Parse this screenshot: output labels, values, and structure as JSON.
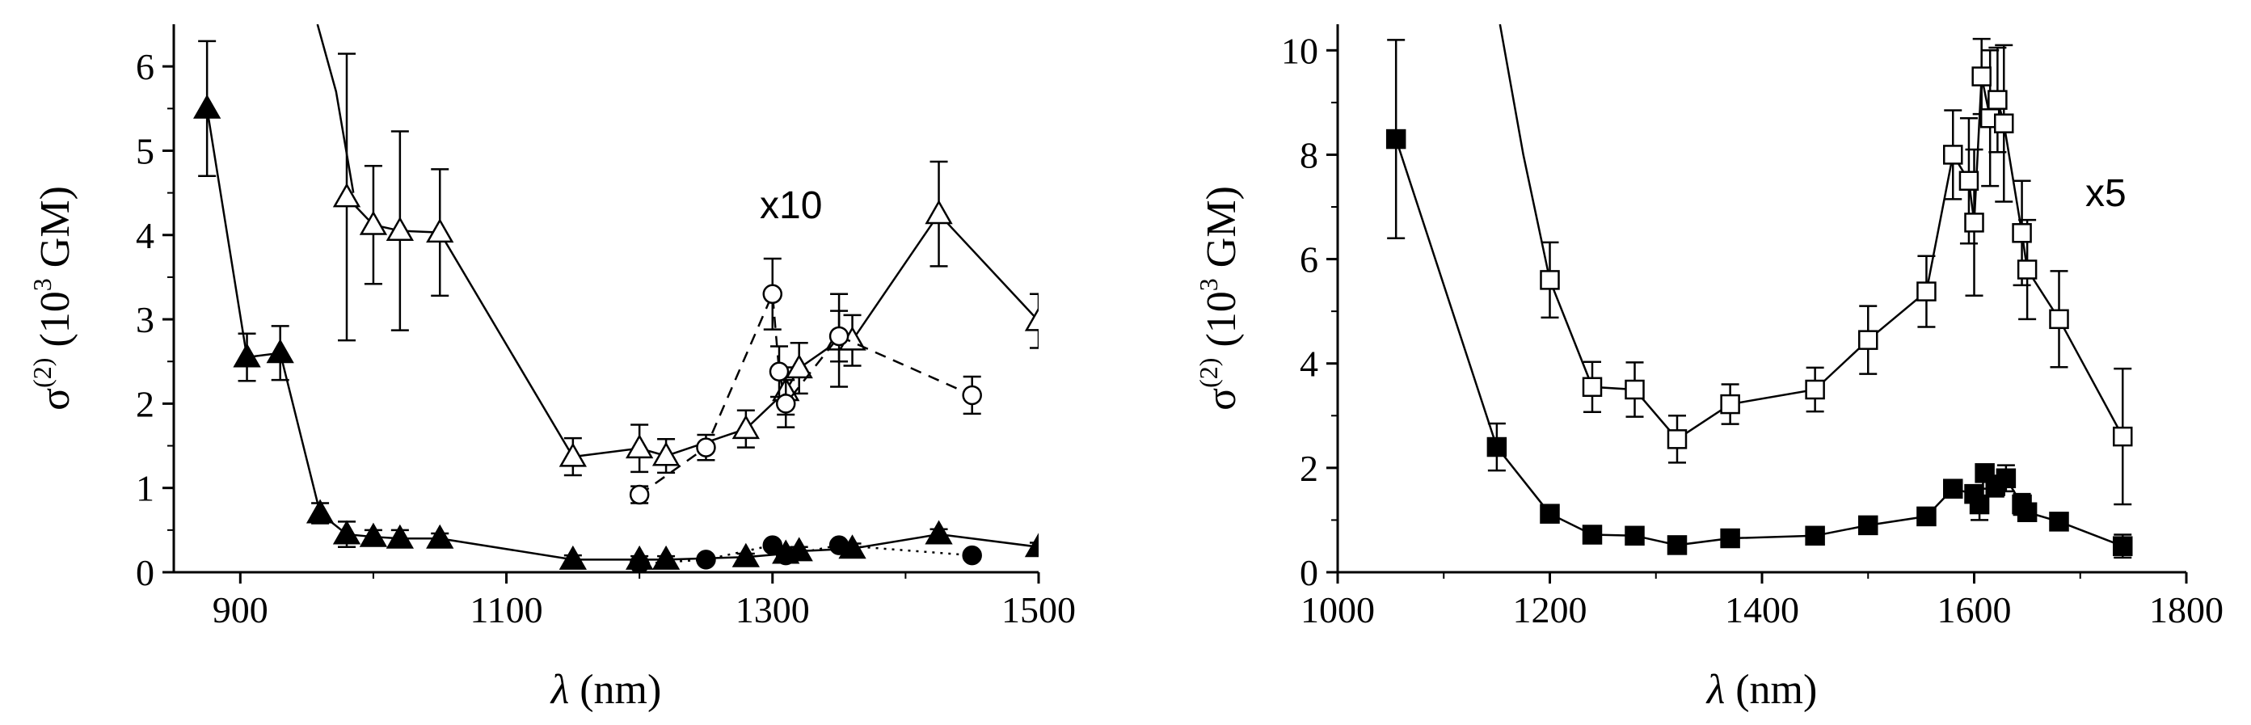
{
  "chart_data": [
    {
      "type": "scatter",
      "xlabel_symbol": "λ",
      "xlabel_unit": " (nm)",
      "ylabel_sym": "σ",
      "ylabel_sup": "(2)",
      "ylabel_pre": " (10",
      "ylabel_exp": "3",
      "ylabel_unit": " GM)",
      "xlim": [
        850,
        1500
      ],
      "ylim": [
        0,
        6.5
      ],
      "xticks": [
        900,
        1100,
        1300,
        1500
      ],
      "yticks": [
        0,
        1,
        2,
        3,
        4,
        5,
        6
      ],
      "annotation": "x10",
      "series": [
        {
          "marker": "triangle-filled",
          "line": "solid",
          "x": [
            875,
            905,
            930,
            960,
            980,
            1000,
            1020,
            1050,
            1150,
            1200,
            1220,
            1280,
            1310,
            1320,
            1360,
            1425,
            1500
          ],
          "y": [
            5.5,
            2.55,
            2.6,
            0.7,
            0.45,
            0.42,
            0.4,
            0.4,
            0.15,
            0.15,
            0.15,
            0.18,
            0.22,
            0.25,
            0.28,
            0.45,
            0.3
          ],
          "err": [
            0.8,
            0.28,
            0.32,
            0.12,
            0.15,
            0.08,
            0.1,
            0.06,
            0.05,
            0.04,
            0.04,
            0.04,
            0.04,
            0.05,
            0.06,
            0.06,
            0.05
          ]
        },
        {
          "marker": "circle-filled",
          "line": "dotted",
          "x": [
            1200,
            1250,
            1300,
            1310,
            1350,
            1450
          ],
          "y": [
            0.1,
            0.15,
            0.32,
            0.2,
            0.32,
            0.2
          ],
          "err": [
            0,
            0,
            0,
            0,
            0,
            0
          ]
        },
        {
          "marker": "triangle-open",
          "line": "solid",
          "x": [
            980,
            1000,
            1020,
            1050,
            1150,
            1200,
            1220,
            1280,
            1310,
            1320,
            1350,
            1360,
            1425,
            1500
          ],
          "y": [
            4.45,
            4.12,
            4.05,
            4.03,
            1.37,
            1.47,
            1.38,
            1.7,
            2.15,
            2.42,
            2.75,
            2.75,
            4.25,
            2.98
          ],
          "err": [
            1.7,
            0.7,
            1.18,
            0.75,
            0.22,
            0.28,
            0.2,
            0.22,
            0.28,
            0.3,
            0.55,
            0.3,
            0.62,
            0.32
          ]
        },
        {
          "marker": "circle-open",
          "line": "dashed",
          "x": [
            1200,
            1250,
            1300,
            1305,
            1310,
            1350,
            1450
          ],
          "y": [
            0.92,
            1.48,
            3.3,
            2.38,
            2.0,
            2.8,
            2.1
          ],
          "err": [
            0.1,
            0.15,
            0.42,
            0.3,
            0.28,
            0.3,
            0.22
          ]
        }
      ],
      "steep_curve": {
        "x": [
          985,
          972,
          958
        ],
        "y": [
          4.5,
          5.7,
          6.5
        ]
      }
    },
    {
      "type": "scatter",
      "xlabel_symbol": "λ",
      "xlabel_unit": " (nm)",
      "ylabel_sym": "σ",
      "ylabel_sup": "(2)",
      "ylabel_pre": " (10",
      "ylabel_exp": "3",
      "ylabel_unit": " GM)",
      "xlim": [
        1000,
        1800
      ],
      "ylim": [
        0,
        10.5
      ],
      "xticks": [
        1000,
        1200,
        1400,
        1600,
        1800
      ],
      "yticks": [
        0,
        2,
        4,
        6,
        8,
        10
      ],
      "annotation": "x5",
      "series": [
        {
          "marker": "square-filled",
          "line": "solid",
          "x": [
            1055,
            1150,
            1200,
            1240,
            1280,
            1320,
            1370,
            1450,
            1500,
            1555,
            1580,
            1600,
            1605,
            1610,
            1620,
            1630,
            1645,
            1650,
            1680,
            1740
          ],
          "y": [
            8.3,
            2.4,
            1.12,
            0.72,
            0.7,
            0.52,
            0.65,
            0.7,
            0.9,
            1.07,
            1.6,
            1.5,
            1.3,
            1.9,
            1.65,
            1.8,
            1.3,
            1.15,
            0.97,
            0.5
          ],
          "err": [
            1.9,
            0.45,
            0.1,
            0.08,
            0.08,
            0.06,
            0.07,
            0.07,
            0.08,
            0.1,
            0.12,
            0.12,
            0.3,
            0.15,
            0.2,
            0.25,
            0.2,
            0.12,
            0.1,
            0.22
          ]
        },
        {
          "marker": "square-open",
          "line": "solid",
          "x": [
            1200,
            1240,
            1280,
            1320,
            1370,
            1450,
            1500,
            1555,
            1580,
            1595,
            1600,
            1607,
            1615,
            1622,
            1628,
            1645,
            1650,
            1680,
            1740
          ],
          "y": [
            5.6,
            3.55,
            3.5,
            2.55,
            3.22,
            3.5,
            4.45,
            5.38,
            8.0,
            7.5,
            6.7,
            9.5,
            8.7,
            9.05,
            8.6,
            6.5,
            5.8,
            4.85,
            2.6
          ],
          "err": [
            0.72,
            0.48,
            0.52,
            0.45,
            0.38,
            0.42,
            0.65,
            0.68,
            0.85,
            1.2,
            1.4,
            0.72,
            1.3,
            1.0,
            1.5,
            1.0,
            0.95,
            0.92,
            1.3
          ]
        }
      ],
      "steep_curve": {
        "x": [
          1200,
          1175,
          1153
        ],
        "y": [
          5.6,
          8.0,
          10.5
        ]
      }
    }
  ]
}
